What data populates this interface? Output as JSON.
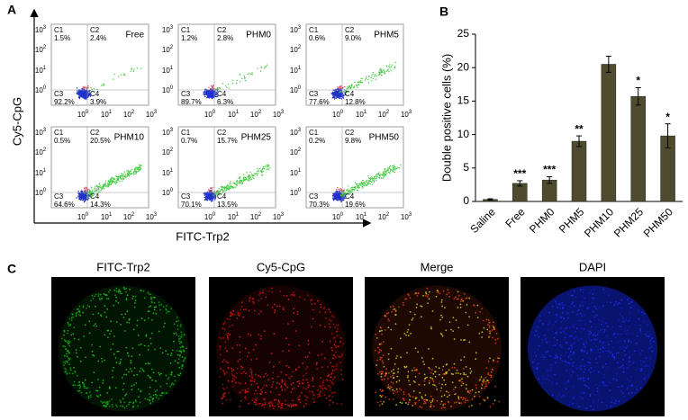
{
  "panel_labels": [
    "A",
    "B",
    "C"
  ],
  "flow": {
    "x_label": "FITC-Trp2",
    "y_label": "Cy5-CpG",
    "ticks": [
      {
        "base": "10",
        "exp": "0"
      },
      {
        "base": "10",
        "exp": "1"
      },
      {
        "base": "10",
        "exp": "2"
      },
      {
        "base": "10",
        "exp": "3"
      }
    ],
    "quadrant_names": [
      "C1",
      "C2",
      "C3",
      "C4"
    ],
    "plots": [
      {
        "name": "Free",
        "percents": [
          "1.5%",
          "2.4%",
          "92.2%",
          "3.9%"
        ]
      },
      {
        "name": "PHM0",
        "percents": [
          "1.2%",
          "2.8%",
          "89.7%",
          "6.3%"
        ]
      },
      {
        "name": "PHM5",
        "percents": [
          "0.6%",
          "9.0%",
          "77.6%",
          "12.8%"
        ]
      },
      {
        "name": "PHM10",
        "percents": [
          "0.5%",
          "20.5%",
          "64.6%",
          "14.3%"
        ]
      },
      {
        "name": "PHM25",
        "percents": [
          "0.7%",
          "15.7%",
          "70.1%",
          "13.5%"
        ]
      },
      {
        "name": "PHM50",
        "percents": [
          "0.2%",
          "9.8%",
          "70.3%",
          "19.6%"
        ]
      }
    ]
  },
  "chart_data": {
    "type": "bar",
    "y_label": "Double positive cells (%)",
    "categories": [
      "Saline",
      "Free",
      "PHM0",
      "PHM5",
      "PHM10",
      "PHM25",
      "PHM50"
    ],
    "values": [
      0.3,
      2.7,
      3.2,
      9.0,
      20.5,
      15.7,
      9.8
    ],
    "errors": [
      0.1,
      0.4,
      0.5,
      0.8,
      1.2,
      1.3,
      1.8
    ],
    "annotations": [
      null,
      "***",
      "***",
      "**",
      null,
      "*",
      "*"
    ],
    "color": "#4f4b2f",
    "ylim": [
      0,
      25
    ],
    "yticks": [
      0,
      5,
      10,
      15,
      20,
      25
    ]
  },
  "images": {
    "titles": [
      "FITC-Trp2",
      "Cy5-CpG",
      "Merge",
      "DAPI"
    ]
  }
}
